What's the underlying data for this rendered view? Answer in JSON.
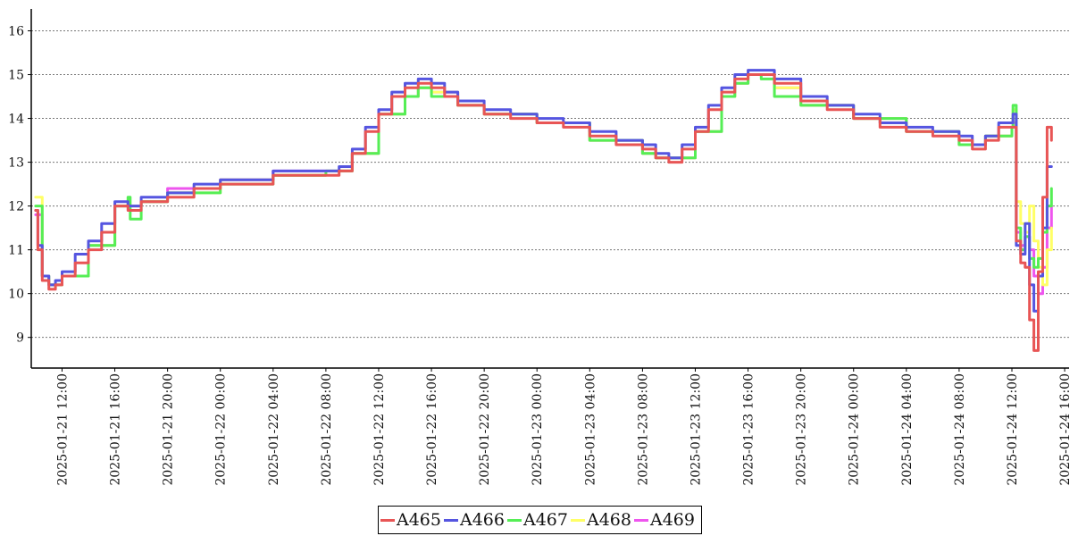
{
  "chart_data": {
    "type": "line",
    "title": "",
    "xlabel": "",
    "ylabel": "",
    "ylim": [
      8.3,
      16.5
    ],
    "xlim": [
      "2025-01-21 09:40",
      "2025-01-24 16:20"
    ],
    "grid": true,
    "legend_position": "bottom-center",
    "y_ticks": [
      "9",
      "10",
      "11",
      "12",
      "13",
      "14",
      "15",
      "16"
    ],
    "x_ticks": [
      "2025-01-21 12:00",
      "2025-01-21 16:00",
      "2025-01-21 20:00",
      "2025-01-22 00:00",
      "2025-01-22 04:00",
      "2025-01-22 08:00",
      "2025-01-22 12:00",
      "2025-01-22 16:00",
      "2025-01-22 20:00",
      "2025-01-23 00:00",
      "2025-01-23 04:00",
      "2025-01-23 08:00",
      "2025-01-23 12:00",
      "2025-01-23 16:00",
      "2025-01-23 20:00",
      "2025-01-24 00:00",
      "2025-01-24 04:00",
      "2025-01-24 08:00",
      "2025-01-24 12:00",
      "2025-01-24 16:00"
    ],
    "series": [
      {
        "name": "A465",
        "color": "#e85555",
        "x": [
          "2025-01-21 10:00",
          "2025-01-21 10:10",
          "2025-01-21 10:30",
          "2025-01-21 11:00",
          "2025-01-21 11:30",
          "2025-01-21 12:00",
          "2025-01-21 13:00",
          "2025-01-21 14:00",
          "2025-01-21 15:00",
          "2025-01-21 16:00",
          "2025-01-21 17:00",
          "2025-01-21 18:00",
          "2025-01-21 20:00",
          "2025-01-21 22:00",
          "2025-01-22 00:00",
          "2025-01-22 02:00",
          "2025-01-22 04:00",
          "2025-01-22 06:00",
          "2025-01-22 08:00",
          "2025-01-22 09:00",
          "2025-01-22 10:00",
          "2025-01-22 11:00",
          "2025-01-22 12:00",
          "2025-01-22 13:00",
          "2025-01-22 14:00",
          "2025-01-22 15:00",
          "2025-01-22 16:00",
          "2025-01-22 17:00",
          "2025-01-22 18:00",
          "2025-01-22 20:00",
          "2025-01-22 22:00",
          "2025-01-23 00:00",
          "2025-01-23 02:00",
          "2025-01-23 04:00",
          "2025-01-23 06:00",
          "2025-01-23 08:00",
          "2025-01-23 09:00",
          "2025-01-23 10:00",
          "2025-01-23 11:00",
          "2025-01-23 12:00",
          "2025-01-23 13:00",
          "2025-01-23 14:00",
          "2025-01-23 15:00",
          "2025-01-23 16:00",
          "2025-01-23 17:00",
          "2025-01-23 18:00",
          "2025-01-23 20:00",
          "2025-01-23 22:00",
          "2025-01-24 00:00",
          "2025-01-24 02:00",
          "2025-01-24 04:00",
          "2025-01-24 06:00",
          "2025-01-24 08:00",
          "2025-01-24 09:00",
          "2025-01-24 10:00",
          "2025-01-24 11:00",
          "2025-01-24 12:00",
          "2025-01-24 12:05",
          "2025-01-24 12:20",
          "2025-01-24 12:40",
          "2025-01-24 13:00",
          "2025-01-24 13:20",
          "2025-01-24 13:40",
          "2025-01-24 14:00",
          "2025-01-24 14:20",
          "2025-01-24 14:40",
          "2025-01-24 15:00"
        ],
        "values": [
          11.9,
          11.0,
          10.3,
          10.1,
          10.2,
          10.4,
          10.7,
          11.0,
          11.4,
          12.0,
          11.9,
          12.1,
          12.2,
          12.4,
          12.5,
          12.5,
          12.7,
          12.7,
          12.7,
          12.8,
          13.2,
          13.7,
          14.1,
          14.5,
          14.7,
          14.8,
          14.7,
          14.5,
          14.3,
          14.1,
          14.0,
          13.9,
          13.8,
          13.6,
          13.4,
          13.3,
          13.1,
          13.0,
          13.3,
          13.7,
          14.2,
          14.6,
          14.9,
          15.0,
          15.0,
          14.8,
          14.4,
          14.2,
          14.0,
          13.8,
          13.7,
          13.6,
          13.5,
          13.3,
          13.5,
          13.8,
          13.8,
          13.8,
          11.2,
          10.7,
          10.6,
          9.4,
          8.7,
          10.5,
          12.2,
          13.8,
          13.5
        ]
      },
      {
        "name": "A466",
        "color": "#5555e0",
        "x": [
          "2025-01-21 10:00",
          "2025-01-21 10:10",
          "2025-01-21 10:30",
          "2025-01-21 11:00",
          "2025-01-21 11:30",
          "2025-01-21 12:00",
          "2025-01-21 13:00",
          "2025-01-21 14:00",
          "2025-01-21 15:00",
          "2025-01-21 16:00",
          "2025-01-21 17:00",
          "2025-01-21 18:00",
          "2025-01-21 20:00",
          "2025-01-21 22:00",
          "2025-01-22 00:00",
          "2025-01-22 02:00",
          "2025-01-22 04:00",
          "2025-01-22 06:00",
          "2025-01-22 08:00",
          "2025-01-22 09:00",
          "2025-01-22 10:00",
          "2025-01-22 11:00",
          "2025-01-22 12:00",
          "2025-01-22 13:00",
          "2025-01-22 14:00",
          "2025-01-22 15:00",
          "2025-01-22 16:00",
          "2025-01-22 17:00",
          "2025-01-22 18:00",
          "2025-01-22 20:00",
          "2025-01-22 22:00",
          "2025-01-23 00:00",
          "2025-01-23 02:00",
          "2025-01-23 04:00",
          "2025-01-23 06:00",
          "2025-01-23 08:00",
          "2025-01-23 09:00",
          "2025-01-23 10:00",
          "2025-01-23 11:00",
          "2025-01-23 12:00",
          "2025-01-23 13:00",
          "2025-01-23 14:00",
          "2025-01-23 15:00",
          "2025-01-23 16:00",
          "2025-01-23 17:00",
          "2025-01-23 18:00",
          "2025-01-23 20:00",
          "2025-01-23 22:00",
          "2025-01-24 00:00",
          "2025-01-24 02:00",
          "2025-01-24 04:00",
          "2025-01-24 06:00",
          "2025-01-24 08:00",
          "2025-01-24 09:00",
          "2025-01-24 10:00",
          "2025-01-24 11:00",
          "2025-01-24 12:00",
          "2025-01-24 12:05",
          "2025-01-24 12:20",
          "2025-01-24 12:40",
          "2025-01-24 13:00",
          "2025-01-24 13:20",
          "2025-01-24 13:40",
          "2025-01-24 14:00",
          "2025-01-24 14:20",
          "2025-01-24 14:40",
          "2025-01-24 15:00"
        ],
        "values": [
          11.9,
          11.1,
          10.4,
          10.2,
          10.3,
          10.5,
          10.9,
          11.2,
          11.6,
          12.1,
          12.0,
          12.2,
          12.3,
          12.5,
          12.6,
          12.6,
          12.8,
          12.8,
          12.8,
          12.9,
          13.3,
          13.8,
          14.2,
          14.6,
          14.8,
          14.9,
          14.8,
          14.6,
          14.4,
          14.2,
          14.1,
          14.0,
          13.9,
          13.7,
          13.5,
          13.4,
          13.2,
          13.1,
          13.4,
          13.8,
          14.3,
          14.7,
          15.0,
          15.1,
          15.1,
          14.9,
          14.5,
          14.3,
          14.1,
          13.9,
          13.8,
          13.7,
          13.6,
          13.4,
          13.6,
          13.9,
          13.9,
          14.1,
          11.1,
          10.9,
          11.6,
          10.2,
          9.6,
          10.4,
          11.5,
          12.9,
          12.9
        ]
      },
      {
        "name": "A467",
        "color": "#55ee55",
        "x": [
          "2025-01-21 10:00",
          "2025-01-21 10:30",
          "2025-01-21 11:00",
          "2025-01-21 12:00",
          "2025-01-21 14:00",
          "2025-01-21 16:00",
          "2025-01-21 17:00",
          "2025-01-21 17:10",
          "2025-01-21 18:00",
          "2025-01-21 20:00",
          "2025-01-22 00:00",
          "2025-01-22 04:00",
          "2025-01-22 08:00",
          "2025-01-22 10:00",
          "2025-01-22 12:00",
          "2025-01-22 14:00",
          "2025-01-22 15:00",
          "2025-01-22 16:00",
          "2025-01-22 18:00",
          "2025-01-22 20:00",
          "2025-01-23 00:00",
          "2025-01-23 04:00",
          "2025-01-23 08:00",
          "2025-01-23 09:00",
          "2025-01-23 10:00",
          "2025-01-23 12:00",
          "2025-01-23 14:00",
          "2025-01-23 15:00",
          "2025-01-23 16:00",
          "2025-01-23 17:00",
          "2025-01-23 18:00",
          "2025-01-23 20:00",
          "2025-01-24 00:00",
          "2025-01-24 04:00",
          "2025-01-24 08:00",
          "2025-01-24 10:00",
          "2025-01-24 12:00",
          "2025-01-24 12:05",
          "2025-01-24 12:20",
          "2025-01-24 12:40",
          "2025-01-24 13:00",
          "2025-01-24 13:20",
          "2025-01-24 13:40",
          "2025-01-24 14:00",
          "2025-01-24 14:20",
          "2025-01-24 14:40",
          "2025-01-24 15:00"
        ],
        "values": [
          12.0,
          10.4,
          10.2,
          10.4,
          11.1,
          12.0,
          12.2,
          11.7,
          12.1,
          12.3,
          12.5,
          12.7,
          12.8,
          13.2,
          14.1,
          14.5,
          14.7,
          14.5,
          14.3,
          14.1,
          13.9,
          13.5,
          13.2,
          13.1,
          13.1,
          13.7,
          14.5,
          14.8,
          15.0,
          14.9,
          14.5,
          14.3,
          14.0,
          13.7,
          13.4,
          13.6,
          13.8,
          14.3,
          11.5,
          11.0,
          11.3,
          10.8,
          10.6,
          10.8,
          11.4,
          12.0,
          12.4
        ]
      },
      {
        "name": "A468",
        "color": "#ffff66",
        "x": [
          "2025-01-21 10:00",
          "2025-01-21 10:30",
          "2025-01-21 11:00",
          "2025-01-21 12:00",
          "2025-01-21 14:00",
          "2025-01-21 16:00",
          "2025-01-21 18:00",
          "2025-01-21 20:00",
          "2025-01-22 00:00",
          "2025-01-22 04:00",
          "2025-01-22 08:00",
          "2025-01-22 10:00",
          "2025-01-22 12:00",
          "2025-01-22 14:00",
          "2025-01-22 15:00",
          "2025-01-22 16:00",
          "2025-01-22 18:00",
          "2025-01-22 20:00",
          "2025-01-23 00:00",
          "2025-01-23 04:00",
          "2025-01-23 08:00",
          "2025-01-23 09:00",
          "2025-01-23 10:00",
          "2025-01-23 12:00",
          "2025-01-23 14:00",
          "2025-01-23 15:00",
          "2025-01-23 16:00",
          "2025-01-23 18:00",
          "2025-01-23 20:00",
          "2025-01-24 00:00",
          "2025-01-24 04:00",
          "2025-01-24 08:00",
          "2025-01-24 10:00",
          "2025-01-24 12:00",
          "2025-01-24 12:05",
          "2025-01-24 12:20",
          "2025-01-24 12:40",
          "2025-01-24 13:00",
          "2025-01-24 13:20",
          "2025-01-24 13:40",
          "2025-01-24 14:00",
          "2025-01-24 14:20",
          "2025-01-24 14:40",
          "2025-01-24 15:00"
        ],
        "values": [
          12.2,
          10.4,
          10.2,
          10.4,
          11.1,
          12.0,
          12.1,
          12.3,
          12.6,
          12.7,
          12.8,
          13.2,
          14.1,
          14.5,
          14.7,
          14.6,
          14.3,
          14.1,
          13.9,
          13.5,
          13.2,
          13.1,
          13.1,
          13.7,
          14.5,
          14.8,
          15.0,
          14.7,
          14.3,
          14.0,
          13.7,
          13.4,
          13.6,
          13.8,
          14.2,
          12.1,
          11.6,
          11.4,
          12.0,
          11.2,
          10.6,
          10.2,
          11.0,
          11.5
        ]
      },
      {
        "name": "A469",
        "color": "#ee55ee",
        "x": [
          "2025-01-21 10:00",
          "2025-01-21 10:30",
          "2025-01-21 11:00",
          "2025-01-21 12:00",
          "2025-01-21 14:00",
          "2025-01-21 16:00",
          "2025-01-21 18:00",
          "2025-01-21 20:00",
          "2025-01-22 00:00",
          "2025-01-22 04:00",
          "2025-01-22 08:00",
          "2025-01-22 10:00",
          "2025-01-22 12:00",
          "2025-01-22 14:00",
          "2025-01-22 15:00",
          "2025-01-22 16:00",
          "2025-01-22 18:00",
          "2025-01-22 20:00",
          "2025-01-23 00:00",
          "2025-01-23 04:00",
          "2025-01-23 08:00",
          "2025-01-23 09:00",
          "2025-01-23 10:00",
          "2025-01-23 12:00",
          "2025-01-23 14:00",
          "2025-01-23 15:00",
          "2025-01-23 16:00",
          "2025-01-23 18:00",
          "2025-01-23 20:00",
          "2025-01-24 00:00",
          "2025-01-24 04:00",
          "2025-01-24 08:00",
          "2025-01-24 10:00",
          "2025-01-24 12:00",
          "2025-01-24 12:05",
          "2025-01-24 12:20",
          "2025-01-24 12:40",
          "2025-01-24 13:00",
          "2025-01-24 13:20",
          "2025-01-24 13:40",
          "2025-01-24 14:00",
          "2025-01-24 14:20",
          "2025-01-24 14:40",
          "2025-01-24 15:00"
        ],
        "values": [
          11.8,
          10.4,
          10.2,
          10.4,
          11.1,
          12.0,
          12.1,
          12.4,
          12.6,
          12.8,
          12.8,
          13.2,
          14.1,
          14.5,
          14.7,
          14.6,
          14.3,
          14.1,
          13.9,
          13.5,
          13.2,
          13.1,
          13.1,
          13.7,
          14.5,
          14.8,
          15.0,
          14.7,
          14.3,
          14.0,
          13.7,
          13.4,
          13.6,
          13.8,
          13.9,
          11.4,
          11.1,
          11.3,
          11.0,
          10.4,
          10.0,
          10.6,
          11.5,
          12.0
        ]
      }
    ]
  }
}
